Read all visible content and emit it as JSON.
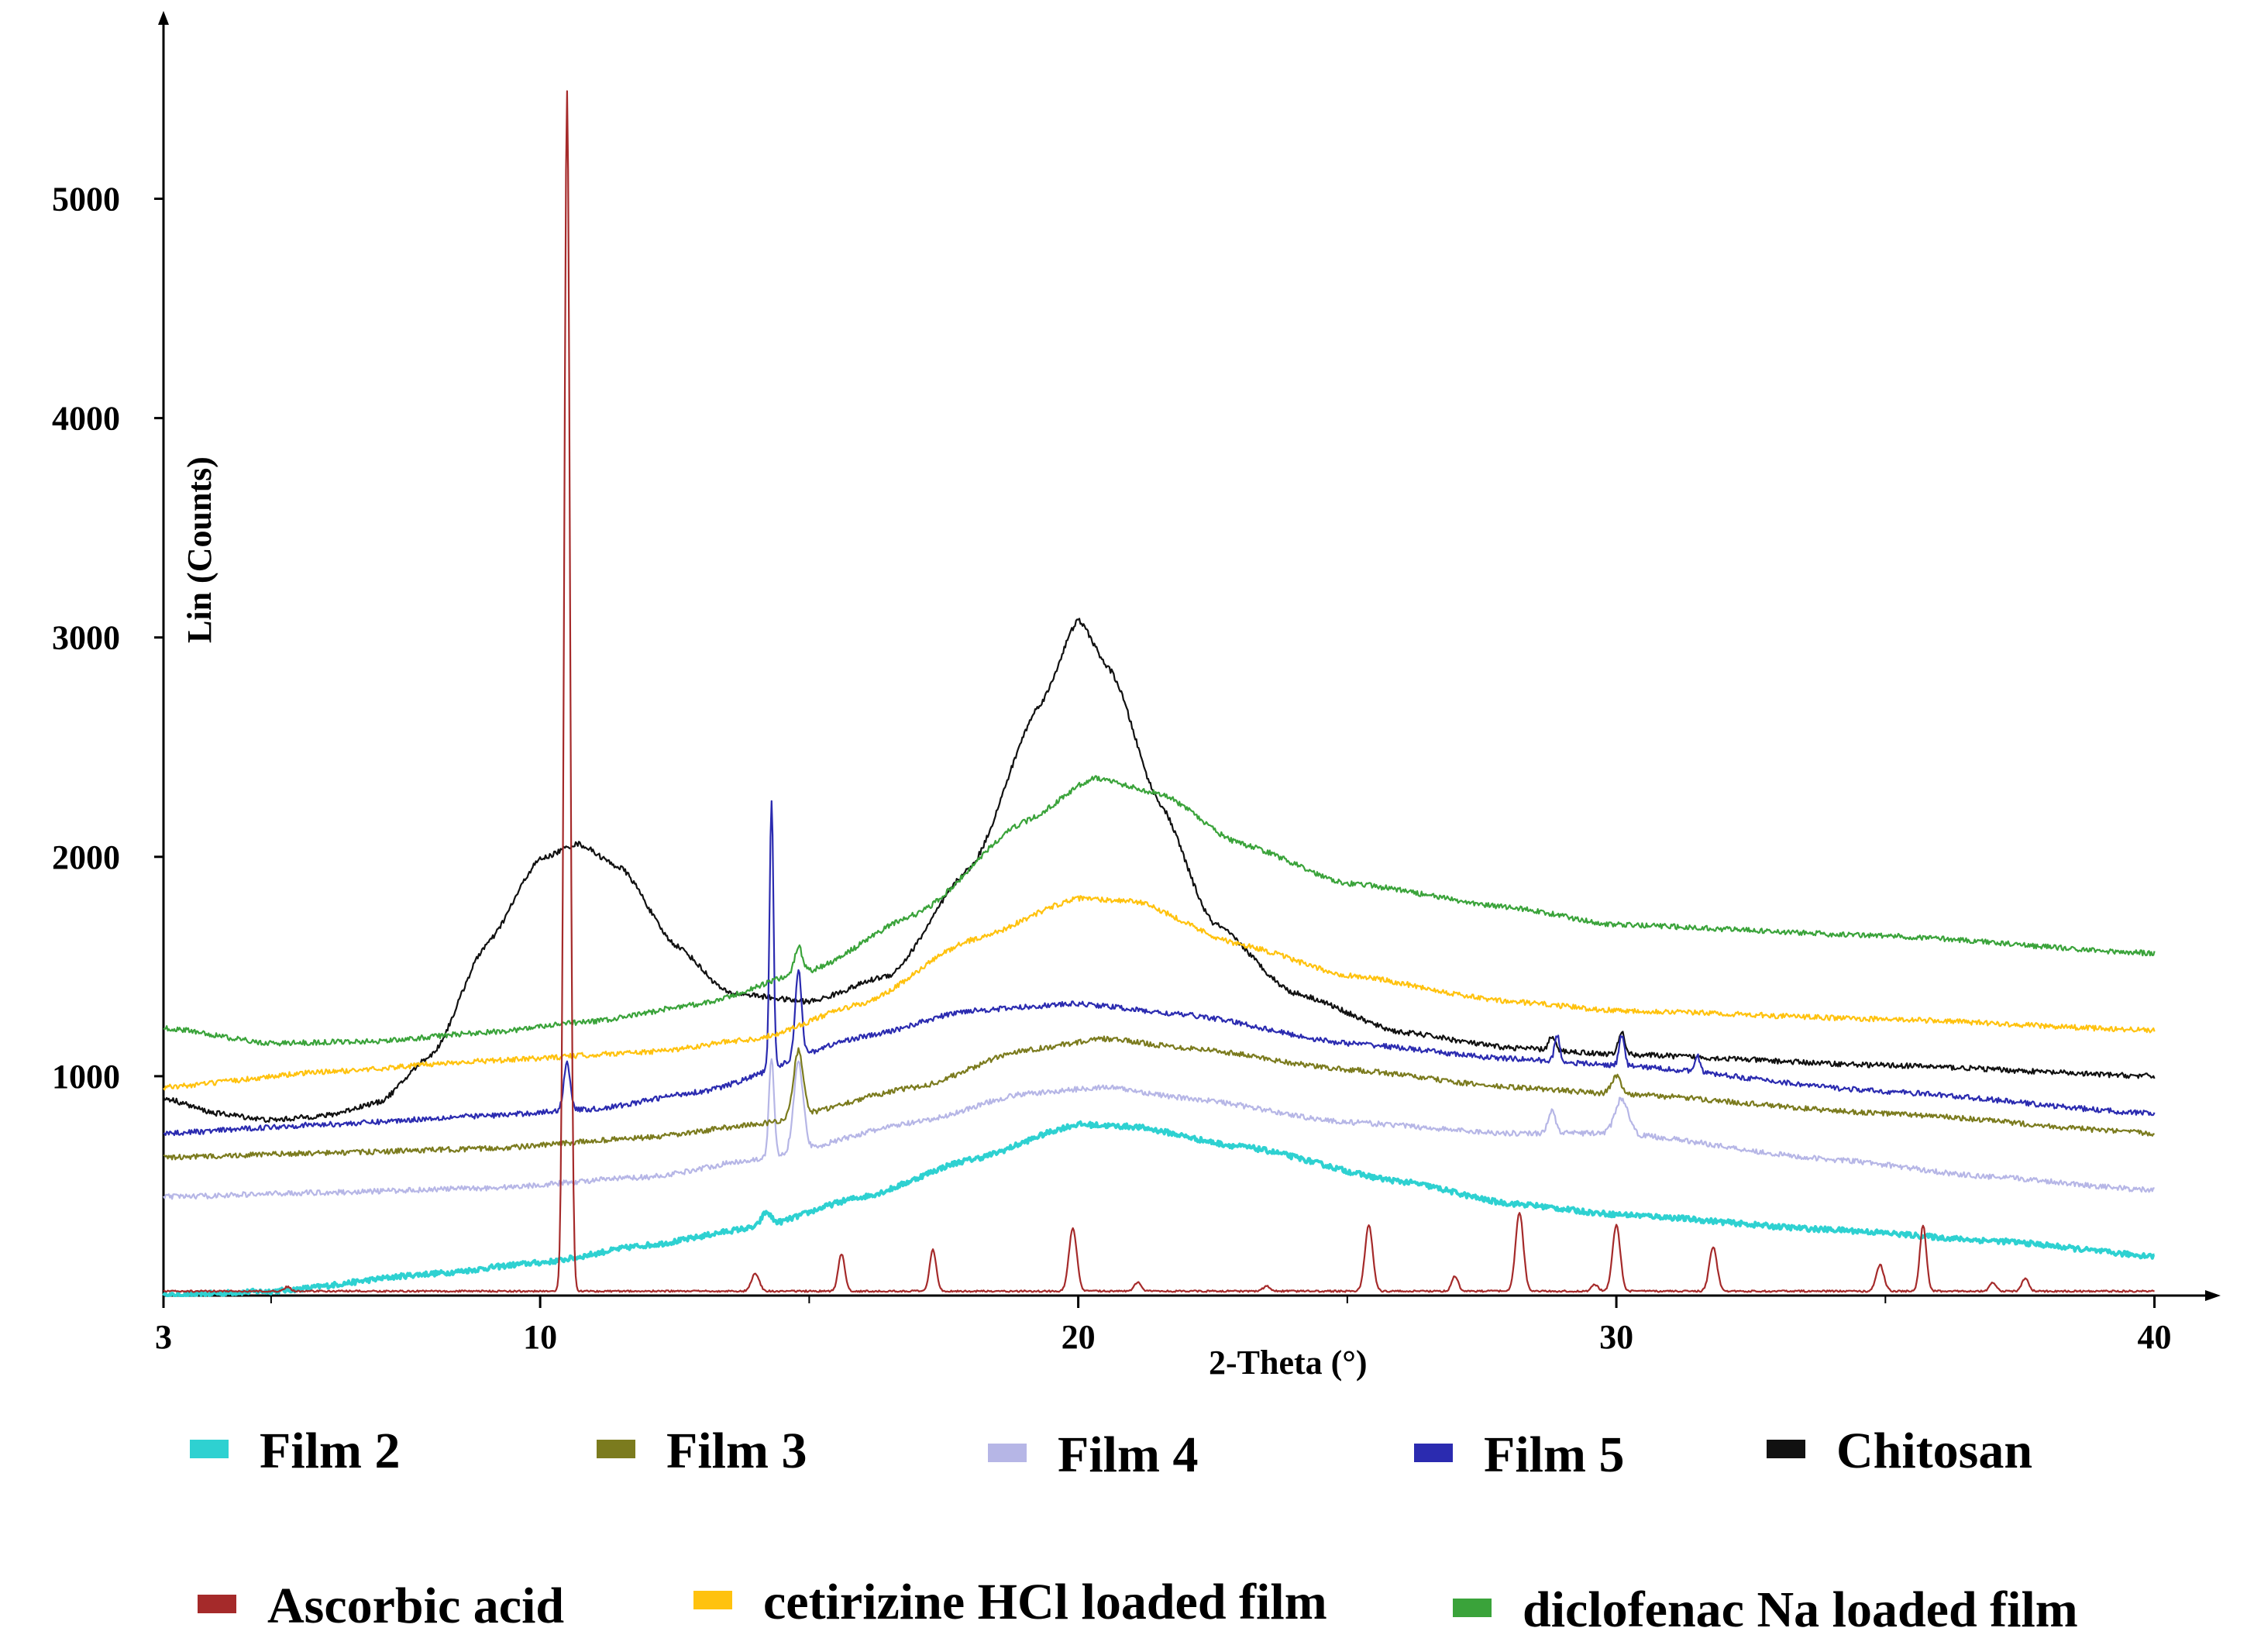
{
  "chart_data": {
    "type": "line",
    "title": "",
    "xlabel": "2-Theta (°)",
    "ylabel": "Lin (Counts)",
    "xlim": [
      3,
      41
    ],
    "ylim": [
      0,
      5800
    ],
    "grid": false,
    "x_ticks": [
      3,
      10,
      20,
      30,
      40
    ],
    "x_tick_labels": [
      "3",
      "10",
      "20",
      "30",
      "40"
    ],
    "y_ticks": [
      1000,
      2000,
      3000,
      4000,
      5000
    ],
    "y_tick_labels": [
      "1000",
      "2000",
      "3000",
      "4000",
      "5000"
    ],
    "legend_position": "bottom",
    "series": [
      {
        "name": "Film 2",
        "color": "#2ed1d1",
        "baseline": [
          [
            3,
            0
          ],
          [
            5,
            20
          ],
          [
            8,
            100
          ],
          [
            10,
            150
          ],
          [
            12,
            230
          ],
          [
            14,
            310
          ],
          [
            16,
            450
          ],
          [
            18,
            620
          ],
          [
            20,
            780
          ],
          [
            21,
            770
          ],
          [
            23,
            680
          ],
          [
            26,
            520
          ],
          [
            28,
            420
          ],
          [
            30,
            370
          ],
          [
            34,
            300
          ],
          [
            37,
            250
          ],
          [
            40,
            180
          ]
        ],
        "peaks": [
          [
            14.2,
            60,
            0.15
          ]
        ]
      },
      {
        "name": "Film 3",
        "color": "#7b7b1e",
        "baseline": [
          [
            3,
            630
          ],
          [
            6,
            650
          ],
          [
            9,
            670
          ],
          [
            12,
            720
          ],
          [
            14,
            780
          ],
          [
            17,
            950
          ],
          [
            19,
            1120
          ],
          [
            20.5,
            1170
          ],
          [
            22,
            1130
          ],
          [
            25,
            1030
          ],
          [
            28,
            950
          ],
          [
            30,
            920
          ],
          [
            35,
            830
          ],
          [
            40,
            740
          ]
        ],
        "peaks": [
          [
            14.8,
            300,
            0.15
          ],
          [
            30,
            80,
            0.15
          ]
        ]
      },
      {
        "name": "Film 4",
        "color": "#b6b6e6",
        "baseline": [
          [
            3,
            450
          ],
          [
            6,
            470
          ],
          [
            9,
            490
          ],
          [
            12,
            540
          ],
          [
            14,
            620
          ],
          [
            17,
            790
          ],
          [
            19,
            920
          ],
          [
            20.5,
            950
          ],
          [
            22,
            900
          ],
          [
            25,
            790
          ],
          [
            28,
            740
          ],
          [
            30,
            740
          ],
          [
            34,
            620
          ],
          [
            37,
            540
          ],
          [
            40,
            480
          ]
        ],
        "peaks": [
          [
            14.3,
            450,
            0.08
          ],
          [
            14.8,
            400,
            0.15
          ],
          [
            28.8,
            100,
            0.12
          ],
          [
            30.1,
            160,
            0.2
          ]
        ]
      },
      {
        "name": "Film 5",
        "color": "#2b2bb0",
        "baseline": [
          [
            3,
            740
          ],
          [
            6,
            780
          ],
          [
            9,
            820
          ],
          [
            11,
            850
          ],
          [
            13,
            930
          ],
          [
            16,
            1180
          ],
          [
            18,
            1300
          ],
          [
            20,
            1330
          ],
          [
            22,
            1280
          ],
          [
            25,
            1150
          ],
          [
            28,
            1080
          ],
          [
            30,
            1050
          ],
          [
            35,
            930
          ],
          [
            40,
            830
          ]
        ],
        "peaks": [
          [
            10.5,
            220,
            0.1
          ],
          [
            14.3,
            1230,
            0.06
          ],
          [
            14.8,
            400,
            0.1
          ],
          [
            28.9,
            120,
            0.08
          ],
          [
            30.1,
            140,
            0.08
          ],
          [
            31.5,
            80,
            0.08
          ]
        ]
      },
      {
        "name": "Chitosan",
        "color": "#111111",
        "baseline": [
          [
            3,
            900
          ],
          [
            4,
            830
          ],
          [
            5,
            800
          ],
          [
            6,
            820
          ],
          [
            7,
            880
          ],
          [
            8,
            1100
          ],
          [
            9,
            1600
          ],
          [
            10,
            1990
          ],
          [
            10.7,
            2060
          ],
          [
            11.5,
            1950
          ],
          [
            12.5,
            1600
          ],
          [
            13.5,
            1380
          ],
          [
            15,
            1340
          ],
          [
            16.5,
            1460
          ],
          [
            18,
            1950
          ],
          [
            19.3,
            2700
          ],
          [
            20,
            3080
          ],
          [
            20.6,
            2850
          ],
          [
            21.5,
            2250
          ],
          [
            22.5,
            1700
          ],
          [
            24,
            1380
          ],
          [
            26,
            1200
          ],
          [
            28,
            1130
          ],
          [
            30,
            1100
          ],
          [
            35,
            1050
          ],
          [
            40,
            1000
          ]
        ],
        "peaks": [
          [
            28.8,
            60,
            0.1
          ],
          [
            30.1,
            100,
            0.1
          ]
        ]
      },
      {
        "name": "Ascorbic acid",
        "color": "#a52a2a",
        "baseline": [
          [
            3,
            20
          ],
          [
            20,
            20
          ],
          [
            40,
            20
          ]
        ],
        "peaks": [
          [
            5.3,
            20,
            0.1
          ],
          [
            10.5,
            5470,
            0.09
          ],
          [
            14,
            80,
            0.12
          ],
          [
            15.6,
            170,
            0.1
          ],
          [
            17.3,
            190,
            0.1
          ],
          [
            19.9,
            290,
            0.12
          ],
          [
            21.1,
            40,
            0.1
          ],
          [
            23.5,
            25,
            0.1
          ],
          [
            25.4,
            300,
            0.12
          ],
          [
            27,
            70,
            0.1
          ],
          [
            28.2,
            360,
            0.12
          ],
          [
            29.6,
            30,
            0.1
          ],
          [
            30,
            300,
            0.12
          ],
          [
            31.8,
            200,
            0.12
          ],
          [
            34.9,
            120,
            0.12
          ],
          [
            35.7,
            300,
            0.1
          ],
          [
            37,
            40,
            0.1
          ],
          [
            37.6,
            60,
            0.1
          ]
        ]
      },
      {
        "name": "cetirizine HCl loaded film",
        "color": "#ffc20e",
        "baseline": [
          [
            3,
            950
          ],
          [
            6,
            1020
          ],
          [
            9,
            1070
          ],
          [
            12,
            1110
          ],
          [
            14,
            1170
          ],
          [
            16,
            1330
          ],
          [
            18,
            1620
          ],
          [
            20,
            1810
          ],
          [
            21,
            1800
          ],
          [
            23,
            1600
          ],
          [
            25,
            1460
          ],
          [
            28,
            1340
          ],
          [
            30,
            1300
          ],
          [
            35,
            1260
          ],
          [
            40,
            1210
          ]
        ],
        "peaks": []
      },
      {
        "name": "diclofenac Na loaded film",
        "color": "#3aa33a",
        "baseline": [
          [
            3,
            1220
          ],
          [
            5,
            1150
          ],
          [
            7,
            1160
          ],
          [
            9,
            1200
          ],
          [
            11,
            1250
          ],
          [
            13,
            1330
          ],
          [
            15,
            1480
          ],
          [
            17,
            1740
          ],
          [
            19,
            2160
          ],
          [
            20.3,
            2360
          ],
          [
            21.5,
            2290
          ],
          [
            23,
            2060
          ],
          [
            25,
            1880
          ],
          [
            28,
            1770
          ],
          [
            30,
            1690
          ],
          [
            35,
            1640
          ],
          [
            40,
            1560
          ]
        ],
        "peaks": [
          [
            14.8,
            120,
            0.12
          ]
        ]
      }
    ]
  }
}
